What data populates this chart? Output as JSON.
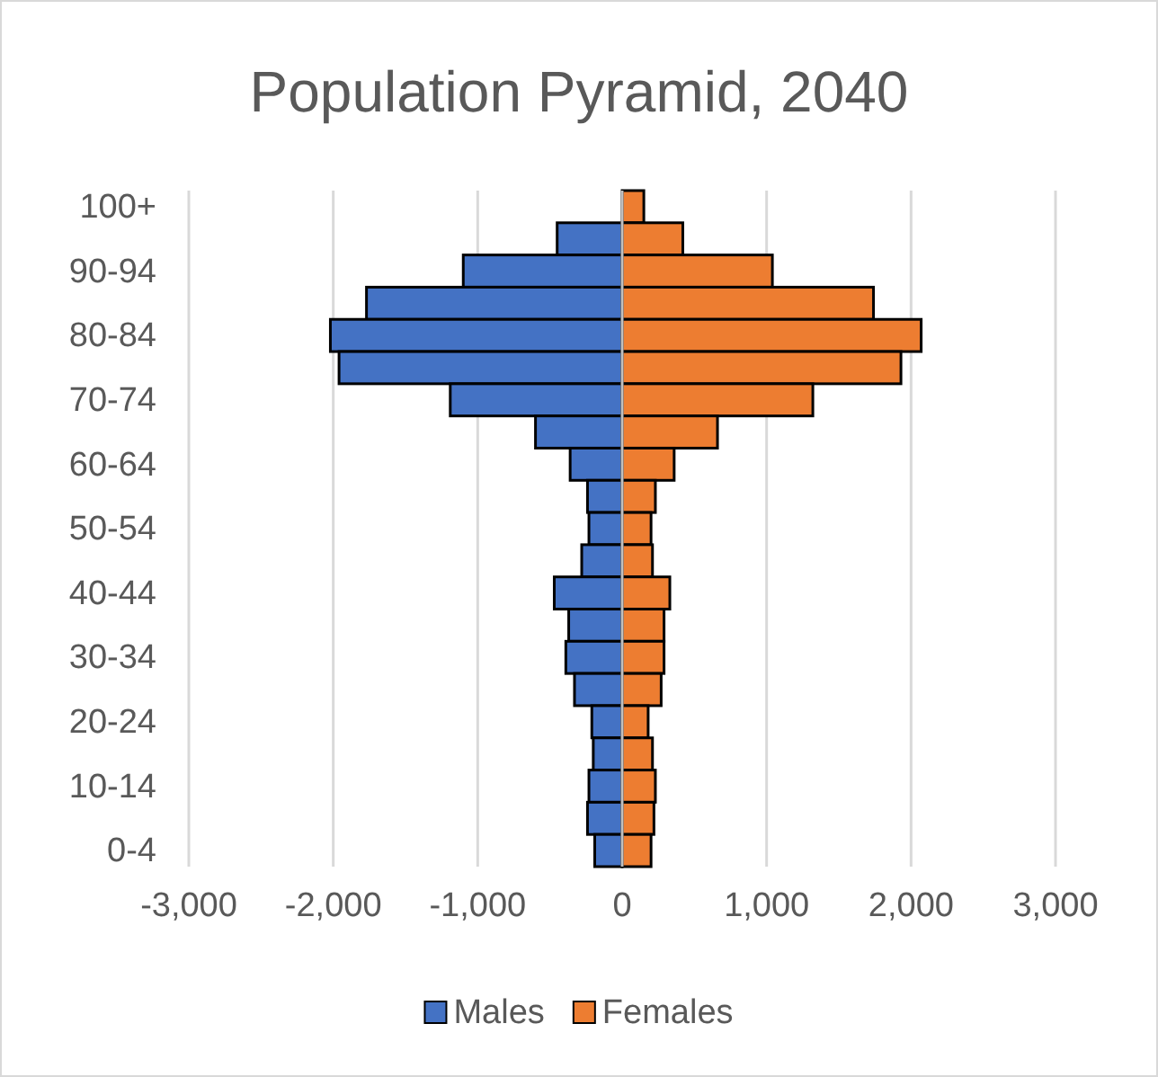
{
  "chart_data": {
    "type": "bar",
    "orientation": "horizontal",
    "stacked": true,
    "title": "Population Pyramid, 2040",
    "categories": [
      "100+",
      null,
      "90-94",
      null,
      "80-84",
      null,
      "70-74",
      null,
      "60-64",
      null,
      "50-54",
      null,
      "40-44",
      null,
      "30-34",
      null,
      "20-24",
      null,
      "10-14",
      null,
      "0-4"
    ],
    "series": [
      {
        "name": "Males",
        "color": "#4472c4",
        "values": [
          0,
          -450,
          -1100,
          -1770,
          -2020,
          -1960,
          -1190,
          -600,
          -360,
          -240,
          -230,
          -280,
          -470,
          -370,
          -390,
          -330,
          -210,
          -200,
          -230,
          -240,
          -190
        ]
      },
      {
        "name": "Females",
        "color": "#ed7d31",
        "values": [
          150,
          420,
          1040,
          1740,
          2070,
          1930,
          1320,
          660,
          360,
          230,
          200,
          210,
          330,
          290,
          290,
          270,
          180,
          210,
          230,
          220,
          200
        ]
      }
    ],
    "xlim": [
      -3000,
      3000
    ],
    "xticks": [
      {
        "value": -3000,
        "label": "-3,000"
      },
      {
        "value": -2000,
        "label": "-2,000"
      },
      {
        "value": -1000,
        "label": "-1,000"
      },
      0,
      {
        "value": 1000,
        "label": "1,000"
      },
      {
        "value": 2000,
        "label": "2,000"
      },
      {
        "value": 3000,
        "label": "3,000"
      }
    ],
    "grid": "x",
    "legend": "bottom"
  }
}
